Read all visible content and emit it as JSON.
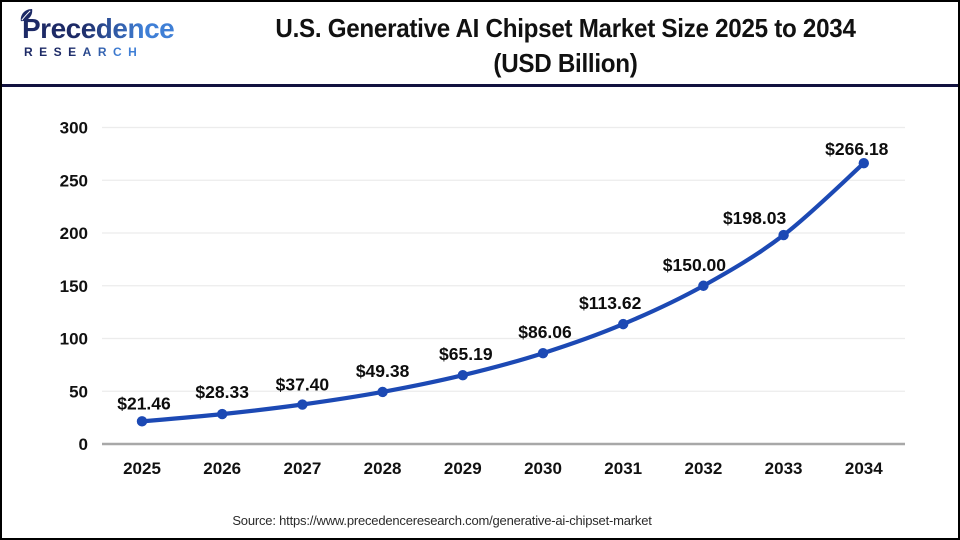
{
  "brand": {
    "name": "Precedence",
    "subname": "RESEARCH"
  },
  "header": {
    "title_line1": "U.S. Generative AI Chipset Market Size 2025 to 2034",
    "title_line2": "(USD Billion)"
  },
  "footer": {
    "source": "Source: https://www.precedenceresearch.com/generative-ai-chipset-market"
  },
  "colors": {
    "line": "#1c49b4",
    "point": "#1c49b4",
    "grid": "#ececec",
    "axis_baseline": "#a8a8a8",
    "header_rule": "#12123f",
    "page_border": "#000000",
    "title_text": "#111111",
    "tick_text": "#111111",
    "data_label_text": "#0d0d0d",
    "source_text": "#2b2b2b",
    "logo_dark": "#1d2a66",
    "logo_light": "#3f7fd6"
  },
  "chart_data": {
    "type": "line",
    "title": "U.S. Generative AI Chipset Market Size 2025 to 2034 (USD Billion)",
    "categories": [
      "2025",
      "2026",
      "2027",
      "2028",
      "2029",
      "2030",
      "2031",
      "2032",
      "2033",
      "2034"
    ],
    "series": [
      {
        "name": "U.S. Generative AI Chipset Market Size (USD Billion)",
        "values": [
          21.46,
          28.33,
          37.4,
          49.38,
          65.19,
          86.06,
          113.62,
          150.0,
          198.03,
          266.18
        ]
      }
    ],
    "value_labels": [
      "$21.46",
      "$28.33",
      "$37.40",
      "$49.38",
      "$65.19",
      "$86.06",
      "$113.62",
      "$150.00",
      "$198.03",
      "$266.18"
    ],
    "xlabel": "",
    "ylabel": "",
    "ylim": [
      0,
      300
    ],
    "ytick_step": 50,
    "ytick_labels": [
      "0",
      "50",
      "100",
      "150",
      "200",
      "250",
      "300"
    ],
    "grid": true,
    "legend": false
  }
}
